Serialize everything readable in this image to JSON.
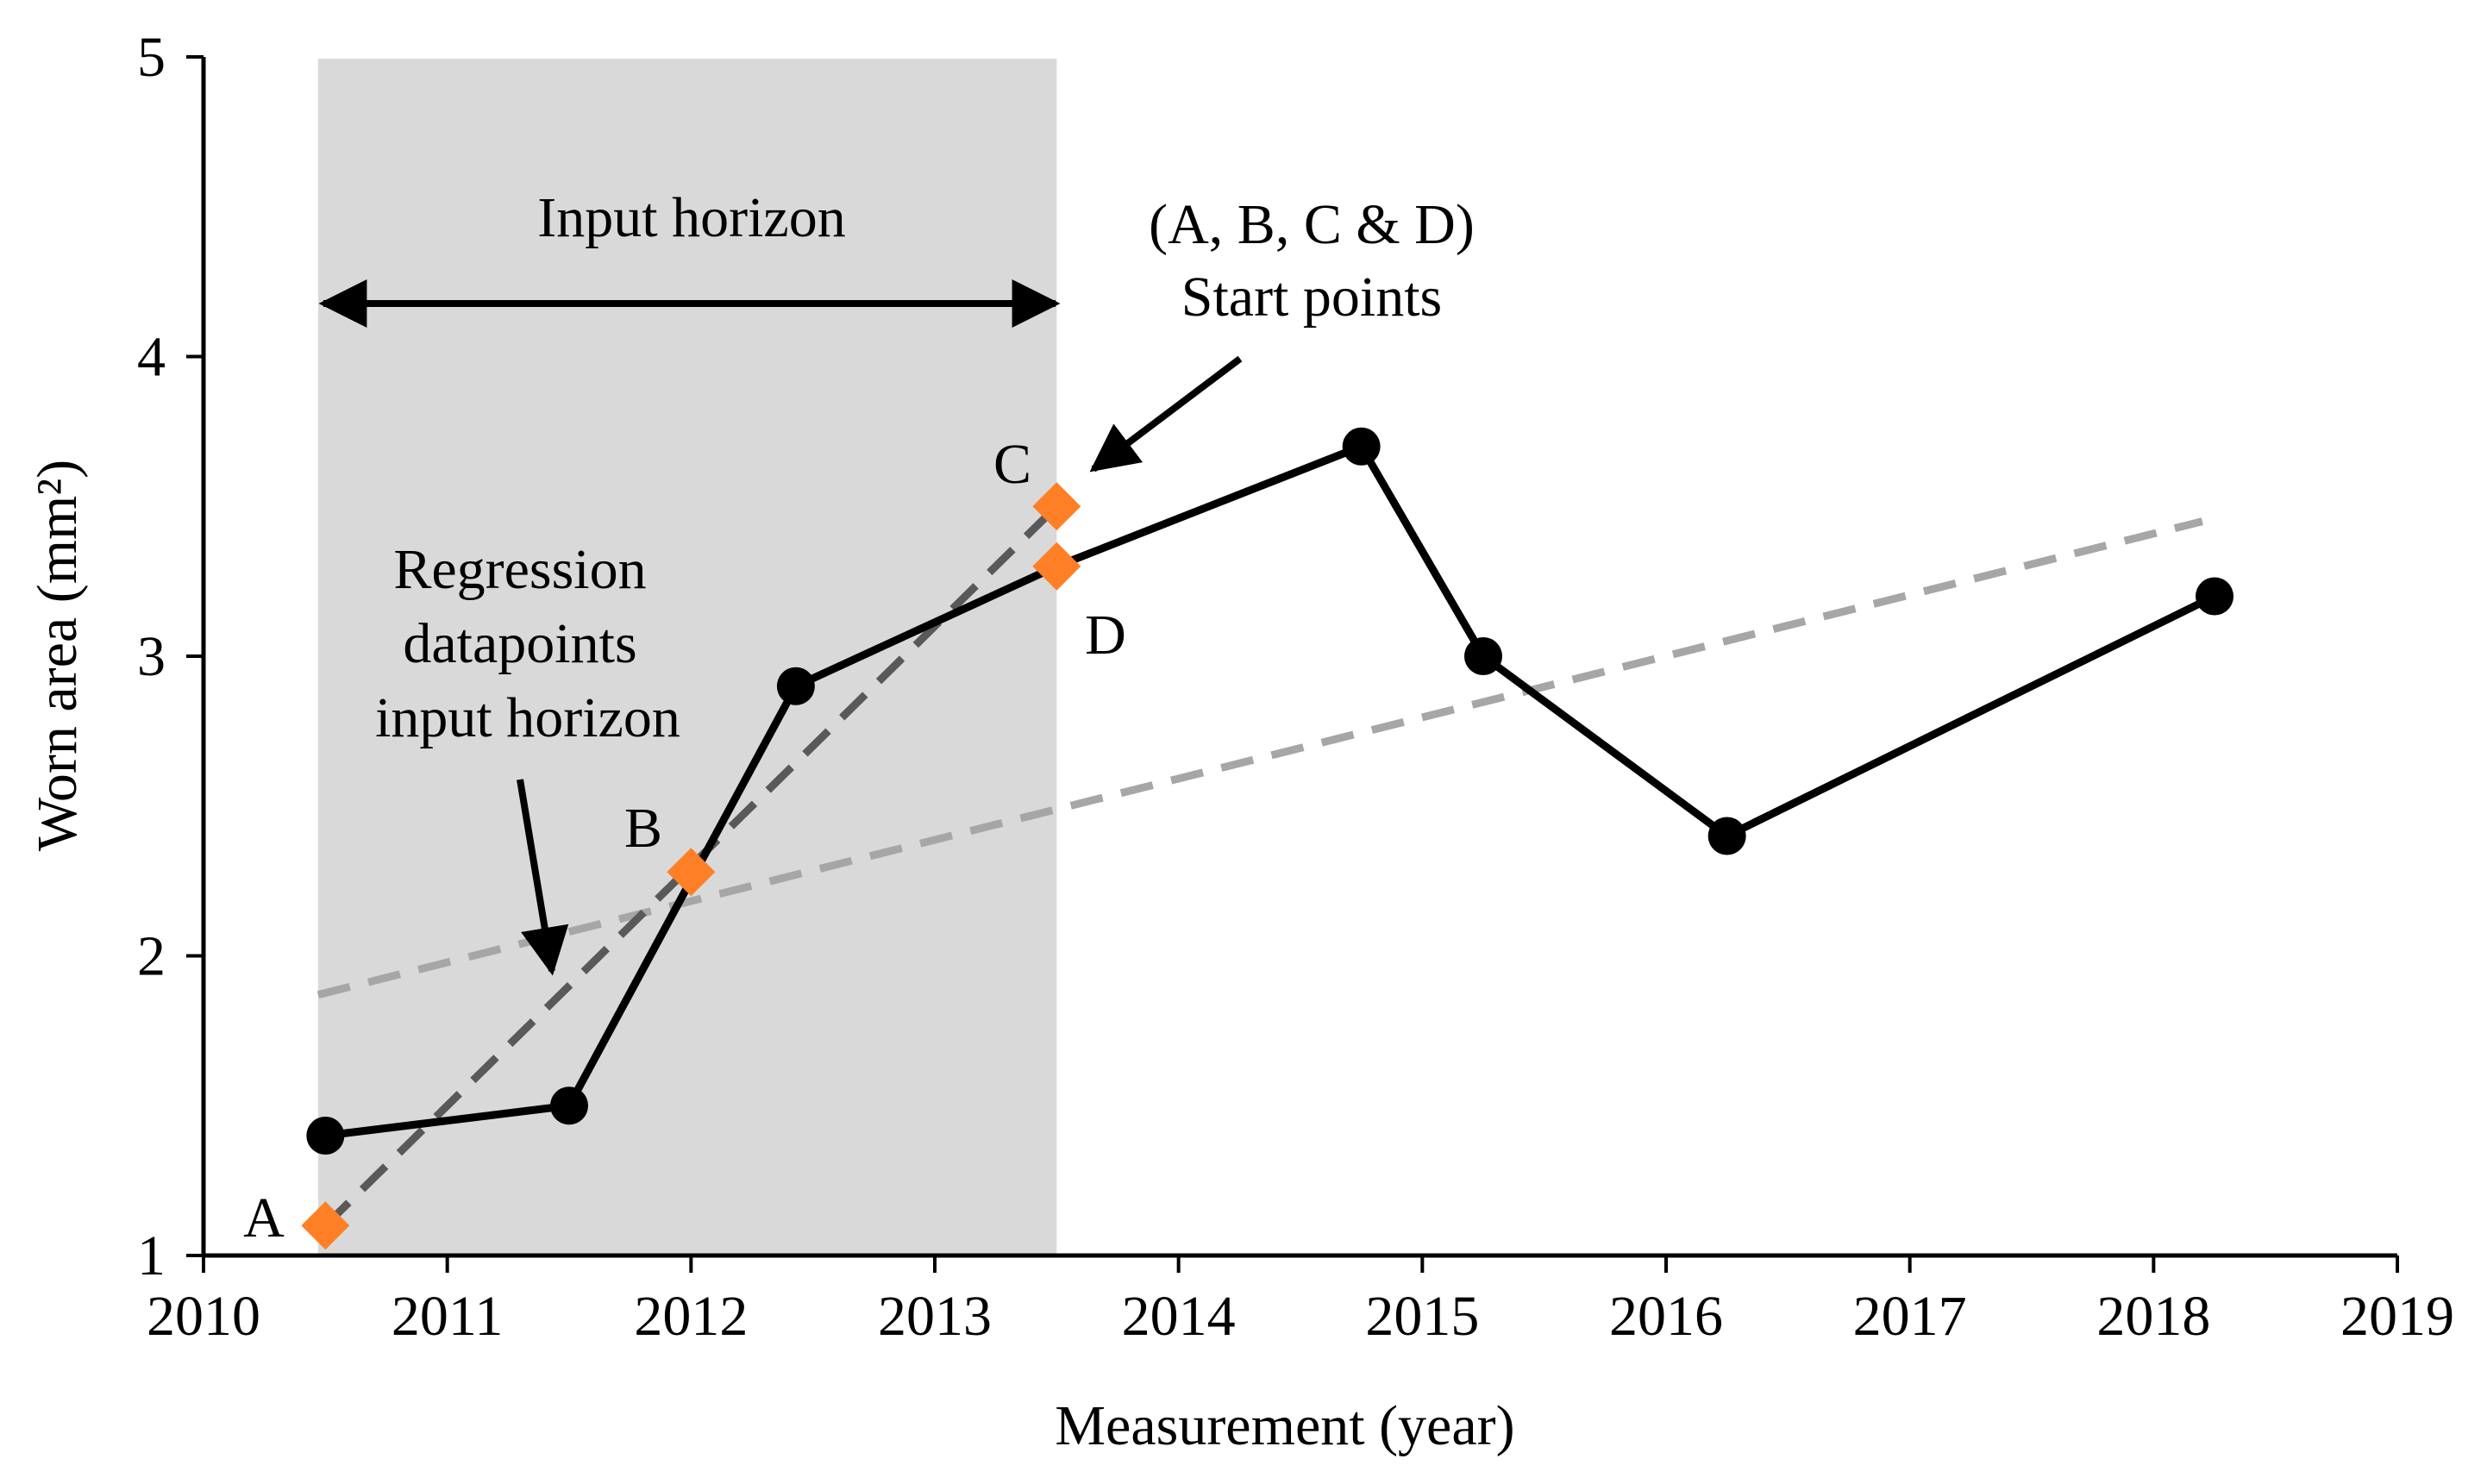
{
  "chart_data": {
    "type": "line",
    "title": "",
    "xlabel": "Measurement (year)",
    "ylabel": "Worn area (mm²)",
    "xlim": [
      2010,
      2019
    ],
    "ylim": [
      1,
      5
    ],
    "x_ticks": [
      2010,
      2011,
      2012,
      2013,
      2014,
      2015,
      2016,
      2017,
      2018,
      2019
    ],
    "y_ticks": [
      1,
      2,
      3,
      4,
      5
    ],
    "grid": false,
    "shaded_region": {
      "x_start": 2010.47,
      "x_end": 2013.5,
      "label": "Input horizon",
      "color": "#d9d9d9"
    },
    "series": [
      {
        "name": "Worn area measurements",
        "style": "solid",
        "color": "#000000",
        "marker": "circle",
        "points": [
          {
            "x": 2010.5,
            "y": 1.4
          },
          {
            "x": 2011.5,
            "y": 1.5
          },
          {
            "x": 2012.43,
            "y": 2.9
          },
          {
            "x": 2013.5,
            "y": 3.3
          },
          {
            "x": 2014.75,
            "y": 3.7
          },
          {
            "x": 2015.25,
            "y": 3.0
          },
          {
            "x": 2016.25,
            "y": 2.4
          },
          {
            "x": 2018.25,
            "y": 3.2
          }
        ],
        "markerless_indices": [
          3
        ]
      },
      {
        "name": "Regression from A",
        "style": "dashed",
        "color": "#a6a6a6",
        "points": [
          {
            "x": 2010.47,
            "y": 1.87
          },
          {
            "x": 2018.2,
            "y": 3.45
          }
        ]
      },
      {
        "name": "Regression datapoints input horizon",
        "style": "dashed",
        "color": "#595959",
        "points": [
          {
            "x": 2010.5,
            "y": 1.1
          },
          {
            "x": 2013.5,
            "y": 3.5
          }
        ]
      }
    ],
    "start_points": {
      "color": "#ff7f27",
      "marker": "diamond",
      "points": [
        {
          "label": "A",
          "x": 2010.5,
          "y": 1.1
        },
        {
          "label": "B",
          "x": 2012.0,
          "y": 2.28
        },
        {
          "label": "C",
          "x": 2013.5,
          "y": 3.5
        },
        {
          "label": "D",
          "x": 2013.5,
          "y": 3.3
        }
      ]
    },
    "annotations": {
      "input_horizon": "Input horizon",
      "start_points_line1": "(A, B, C & D)",
      "start_points_line2": "Start points",
      "regression_line1": "Regression",
      "regression_line2": "datapoints",
      "regression_line3": "input horizon"
    }
  }
}
